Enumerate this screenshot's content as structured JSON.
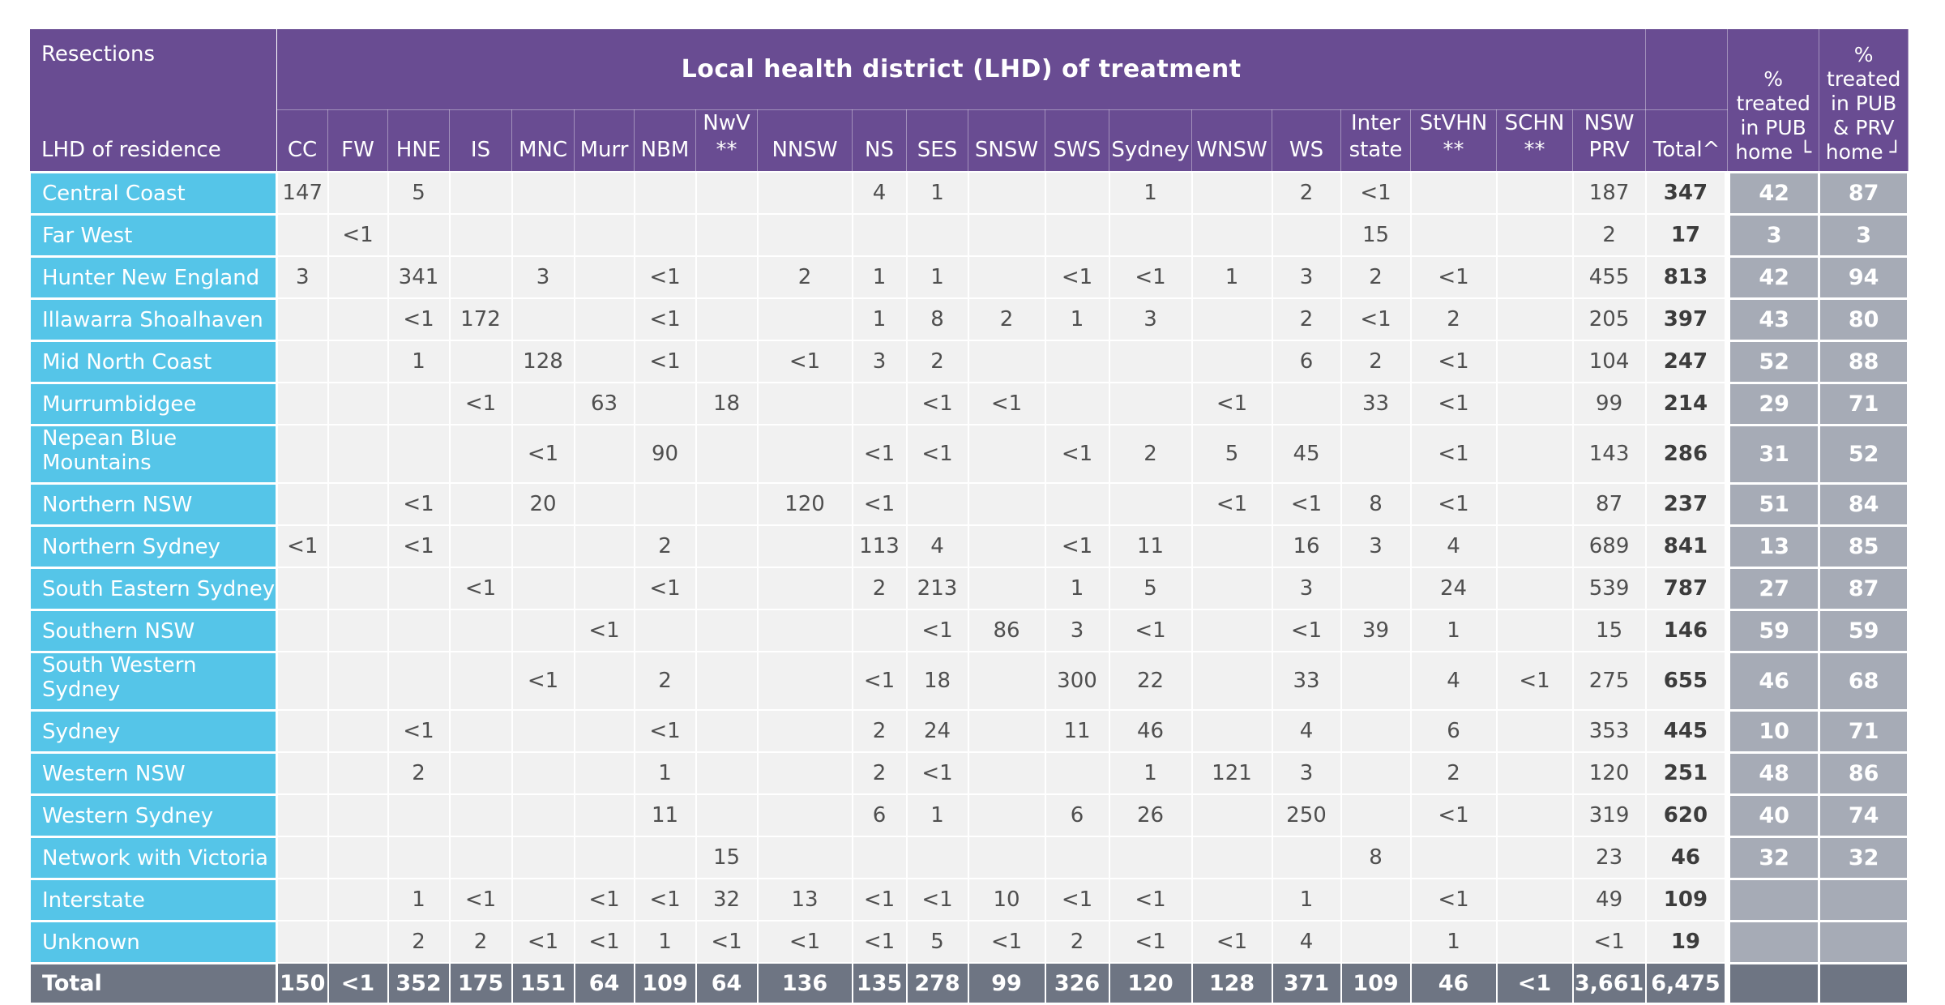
{
  "chart_data": {
    "type": "table",
    "corner_top": "Resections",
    "corner_bottom": "LHD of residence",
    "group_header": "Local health district (LHD) of treatment",
    "pct_pub_header": "%\ntreated\nin PUB\nhome └",
    "pct_both_header": "%\ntreated\nin PUB\n& PRV\nhome ┘",
    "colors": {
      "header_purple": "#694C92",
      "row_label_cyan": "#55C5E8",
      "total_row_slate": "#6E7583",
      "pct_column_gray": "#A6ABB6",
      "cell_background": "#F1F1F1"
    },
    "columns": [
      {
        "key": "cc",
        "label": "CC"
      },
      {
        "key": "fw",
        "label": "FW"
      },
      {
        "key": "hne",
        "label": "HNE"
      },
      {
        "key": "is",
        "label": "IS"
      },
      {
        "key": "mnc",
        "label": "MNC"
      },
      {
        "key": "murr",
        "label": "Murr"
      },
      {
        "key": "nbm",
        "label": "NBM"
      },
      {
        "key": "nwv",
        "label": "NwV\n**"
      },
      {
        "key": "nnsw",
        "label": "NNSW"
      },
      {
        "key": "ns",
        "label": "NS"
      },
      {
        "key": "ses",
        "label": "SES"
      },
      {
        "key": "snsw",
        "label": "SNSW"
      },
      {
        "key": "sws",
        "label": "SWS"
      },
      {
        "key": "sydney",
        "label": "Sydney"
      },
      {
        "key": "wnsw",
        "label": "WNSW"
      },
      {
        "key": "ws",
        "label": "WS"
      },
      {
        "key": "inter",
        "label": "Inter\nstate"
      },
      {
        "key": "stvhn",
        "label": "StVHN\n**"
      },
      {
        "key": "schn",
        "label": "SCHN\n**"
      },
      {
        "key": "prv",
        "label": "NSW\nPRV"
      },
      {
        "key": "total",
        "label": "Total^"
      }
    ],
    "rows": [
      {
        "label": "Central Coast",
        "values": [
          "147",
          "",
          "5",
          "",
          "",
          "",
          "",
          "",
          "",
          "4",
          "1",
          "",
          "",
          "1",
          "",
          "2",
          "<1",
          "",
          "",
          "187",
          "347",
          "42",
          "87"
        ]
      },
      {
        "label": "Far West",
        "values": [
          "",
          "<1",
          "",
          "",
          "",
          "",
          "",
          "",
          "",
          "",
          "",
          "",
          "",
          "",
          "",
          "",
          "15",
          "",
          "",
          "2",
          "17",
          "3",
          "3"
        ]
      },
      {
        "label": "Hunter New England",
        "values": [
          "3",
          "",
          "341",
          "",
          "3",
          "",
          "<1",
          "",
          "2",
          "1",
          "1",
          "",
          "<1",
          "<1",
          "1",
          "3",
          "2",
          "<1",
          "",
          "455",
          "813",
          "42",
          "94"
        ]
      },
      {
        "label": "Illawarra Shoalhaven",
        "values": [
          "",
          "",
          "<1",
          "172",
          "",
          "",
          "<1",
          "",
          "",
          "1",
          "8",
          "2",
          "1",
          "3",
          "",
          "2",
          "<1",
          "2",
          "",
          "205",
          "397",
          "43",
          "80"
        ]
      },
      {
        "label": "Mid North Coast",
        "values": [
          "",
          "",
          "1",
          "",
          "128",
          "",
          "<1",
          "",
          "<1",
          "3",
          "2",
          "",
          "",
          "",
          "",
          "6",
          "2",
          "<1",
          "",
          "104",
          "247",
          "52",
          "88"
        ]
      },
      {
        "label": "Murrumbidgee",
        "values": [
          "",
          "",
          "",
          "<1",
          "",
          "63",
          "",
          "18",
          "",
          "",
          "<1",
          "<1",
          "",
          "",
          "<1",
          "",
          "33",
          "<1",
          "",
          "99",
          "214",
          "29",
          "71"
        ]
      },
      {
        "label": "Nepean Blue Mountains",
        "values": [
          "",
          "",
          "",
          "",
          "<1",
          "",
          "90",
          "",
          "",
          "<1",
          "<1",
          "",
          "<1",
          "2",
          "5",
          "45",
          "",
          "<1",
          "",
          "143",
          "286",
          "31",
          "52"
        ]
      },
      {
        "label": "Northern NSW",
        "values": [
          "",
          "",
          "<1",
          "",
          "20",
          "",
          "",
          "",
          "120",
          "<1",
          "",
          "",
          "",
          "",
          "<1",
          "<1",
          "8",
          "<1",
          "",
          "87",
          "237",
          "51",
          "84"
        ]
      },
      {
        "label": "Northern Sydney",
        "values": [
          "<1",
          "",
          "<1",
          "",
          "",
          "",
          "2",
          "",
          "",
          "113",
          "4",
          "",
          "<1",
          "11",
          "",
          "16",
          "3",
          "4",
          "",
          "689",
          "841",
          "13",
          "85"
        ]
      },
      {
        "label": "South Eastern Sydney",
        "values": [
          "",
          "",
          "",
          "<1",
          "",
          "",
          "<1",
          "",
          "",
          "2",
          "213",
          "",
          "1",
          "5",
          "",
          "3",
          "",
          "24",
          "",
          "539",
          "787",
          "27",
          "87"
        ]
      },
      {
        "label": "Southern NSW",
        "values": [
          "",
          "",
          "",
          "",
          "",
          "<1",
          "",
          "",
          "",
          "",
          "<1",
          "86",
          "3",
          "<1",
          "",
          "<1",
          "39",
          "1",
          "",
          "15",
          "146",
          "59",
          "59"
        ]
      },
      {
        "label": "South Western Sydney",
        "values": [
          "",
          "",
          "",
          "",
          "<1",
          "",
          "2",
          "",
          "",
          "<1",
          "18",
          "",
          "300",
          "22",
          "",
          "33",
          "",
          "4",
          "<1",
          "275",
          "655",
          "46",
          "68"
        ]
      },
      {
        "label": "Sydney",
        "values": [
          "",
          "",
          "<1",
          "",
          "",
          "",
          "<1",
          "",
          "",
          "2",
          "24",
          "",
          "11",
          "46",
          "",
          "4",
          "",
          "6",
          "",
          "353",
          "445",
          "10",
          "71"
        ]
      },
      {
        "label": "Western NSW",
        "values": [
          "",
          "",
          "2",
          "",
          "",
          "",
          "1",
          "",
          "",
          "2",
          "<1",
          "",
          "",
          "1",
          "121",
          "3",
          "",
          "2",
          "",
          "120",
          "251",
          "48",
          "86"
        ]
      },
      {
        "label": "Western Sydney",
        "values": [
          "",
          "",
          "",
          "",
          "",
          "",
          "11",
          "",
          "",
          "6",
          "1",
          "",
          "6",
          "26",
          "",
          "250",
          "",
          "<1",
          "",
          "319",
          "620",
          "40",
          "74"
        ]
      },
      {
        "label": "Network with Victoria",
        "values": [
          "",
          "",
          "",
          "",
          "",
          "",
          "",
          "15",
          "",
          "",
          "",
          "",
          "",
          "",
          "",
          "",
          "8",
          "",
          "",
          "23",
          "46",
          "32",
          "32"
        ]
      },
      {
        "label": "Interstate",
        "values": [
          "",
          "",
          "1",
          "<1",
          "",
          "<1",
          "<1",
          "32",
          "13",
          "<1",
          "<1",
          "10",
          "<1",
          "<1",
          "",
          "1",
          "",
          "<1",
          "",
          "49",
          "109",
          "",
          ""
        ]
      },
      {
        "label": "Unknown",
        "values": [
          "",
          "",
          "2",
          "2",
          "<1",
          "<1",
          "1",
          "<1",
          "<1",
          "<1",
          "5",
          "<1",
          "2",
          "<1",
          "<1",
          "4",
          "",
          "1",
          "",
          "<1",
          "19",
          "",
          ""
        ]
      }
    ],
    "total_row": {
      "label": "Total",
      "values": [
        "150",
        "<1",
        "352",
        "175",
        "151",
        "64",
        "109",
        "64",
        "136",
        "135",
        "278",
        "99",
        "326",
        "120",
        "128",
        "371",
        "109",
        "46",
        "<1",
        "3,661",
        "6,475",
        "",
        ""
      ]
    }
  }
}
